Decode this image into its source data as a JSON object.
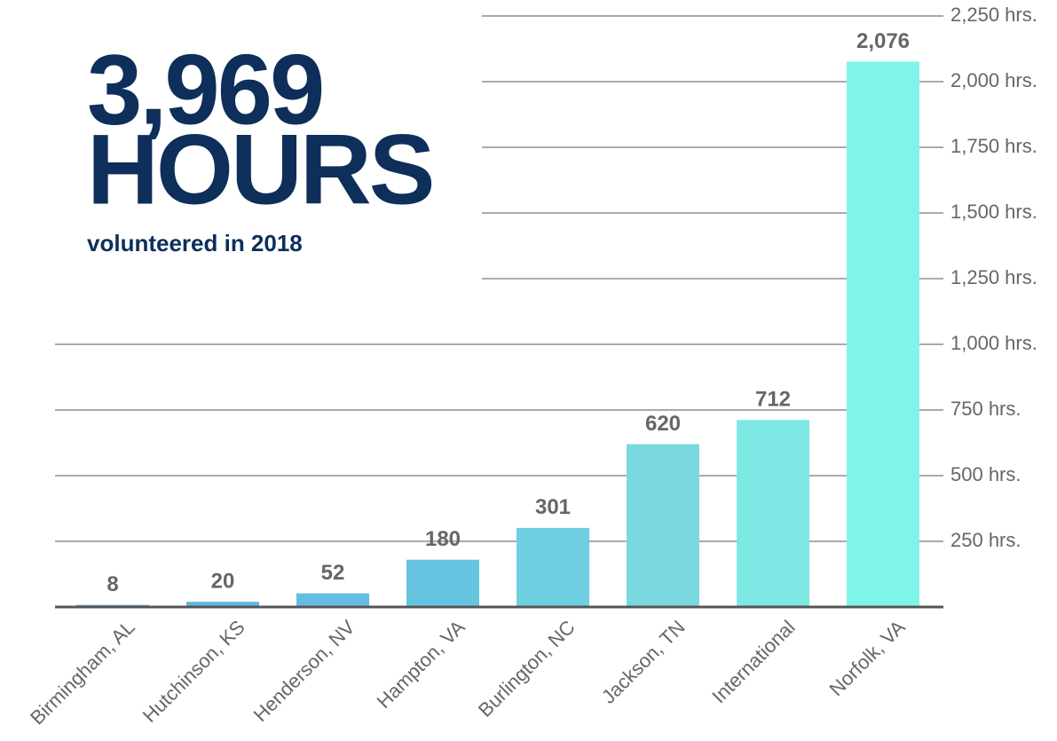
{
  "chart_data": {
    "type": "bar",
    "title": "3,969",
    "title_line2": "HOURS",
    "subtitle": "volunteered in 2018",
    "categories": [
      "Birmingham, AL",
      "Hutchinson, KS",
      "Henderson, NV",
      "Hampton, VA",
      "Burlington, NC",
      "Jackson, TN",
      "International",
      "Norfolk, VA"
    ],
    "values": [
      8,
      20,
      52,
      180,
      301,
      620,
      712,
      2076
    ],
    "value_labels": [
      "8",
      "20",
      "52",
      "180",
      "301",
      "620",
      "712",
      "2,076"
    ],
    "colors": [
      "#5fb3e0",
      "#62b8e0",
      "#64bde0",
      "#67c4e0",
      "#6fcee0",
      "#7ad9e0",
      "#7ee8e4",
      "#80f4e8"
    ],
    "ylim": [
      0,
      2250
    ],
    "yticks": [
      {
        "value": 250,
        "label": "250 hrs."
      },
      {
        "value": 500,
        "label": "500 hrs."
      },
      {
        "value": 750,
        "label": "750 hrs."
      },
      {
        "value": 1000,
        "label": "1,000 hrs."
      },
      {
        "value": 1250,
        "label": "1,250 hrs."
      },
      {
        "value": 1500,
        "label": "1,500 hrs."
      },
      {
        "value": 1750,
        "label": "1,750 hrs."
      },
      {
        "value": 2000,
        "label": "2,000 hrs."
      },
      {
        "value": 2250,
        "label": "2,250 hrs."
      }
    ],
    "grid": true
  }
}
